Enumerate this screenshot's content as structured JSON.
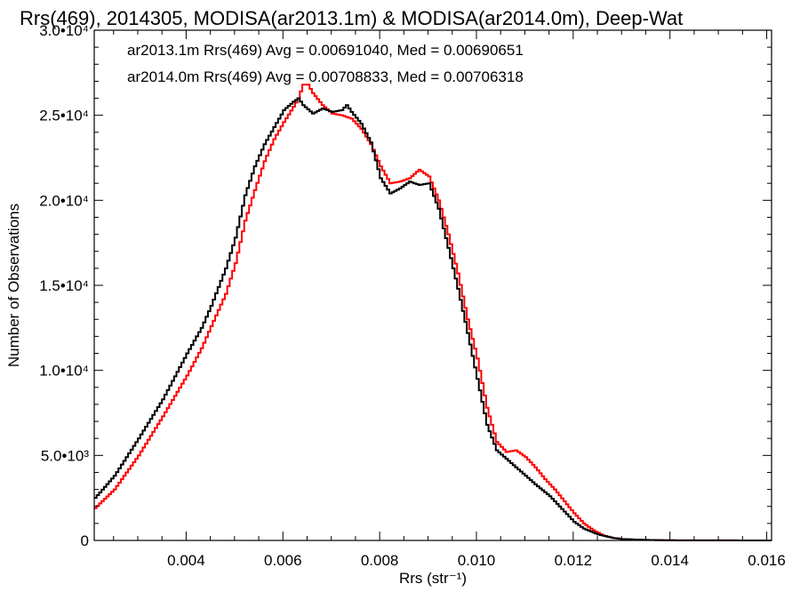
{
  "chart_data": {
    "type": "line",
    "title": "Rrs(469), 2014305, MODISA(ar2013.1m) & MODISA(ar2014.0m), Deep-Wat",
    "xlabel": "Rrs (str⁻¹)",
    "ylabel": "Number of Observations",
    "xlim": [
      0.0021,
      0.0161
    ],
    "ylim": [
      0,
      30000
    ],
    "grid": false,
    "legend_position": "top-left",
    "x_ticks": [
      0.004,
      0.006,
      0.008,
      0.01,
      0.012,
      0.014,
      0.016
    ],
    "x_tick_labels": [
      "0.004",
      "0.006",
      "0.008",
      "0.010",
      "0.012",
      "0.014",
      "0.016"
    ],
    "y_ticks": [
      0,
      5000,
      10000,
      15000,
      20000,
      25000,
      30000
    ],
    "y_tick_labels": [
      "0",
      "5.0•10³",
      "1.0•10⁴",
      "1.5•10⁴",
      "2.0•10⁴",
      "2.5•10⁴",
      "3.0•10⁴"
    ],
    "series": [
      {
        "name": "ar2013.1m",
        "legend_text": "ar2013.1m Rrs(469) Avg = 0.00691040, Med = 0.00690651",
        "color": "#000000",
        "x": [
          0.0021,
          0.0025,
          0.003,
          0.0035,
          0.004,
          0.0043,
          0.0045,
          0.0048,
          0.005,
          0.0052,
          0.0054,
          0.0056,
          0.0058,
          0.006,
          0.0062,
          0.0063,
          0.0064,
          0.0066,
          0.0068,
          0.007,
          0.0072,
          0.0073,
          0.0074,
          0.0076,
          0.0078,
          0.008,
          0.0082,
          0.0084,
          0.0086,
          0.0088,
          0.009,
          0.0092,
          0.0094,
          0.0096,
          0.0098,
          0.01,
          0.0102,
          0.0104,
          0.0106,
          0.0108,
          0.011,
          0.0112,
          0.0115,
          0.0118,
          0.012,
          0.0122,
          0.0125,
          0.0128,
          0.013,
          0.0135,
          0.014,
          0.015,
          0.0161
        ],
        "y": [
          2500,
          3800,
          6000,
          8300,
          11000,
          12500,
          13800,
          16000,
          17800,
          20300,
          22000,
          23300,
          24300,
          25300,
          25800,
          26000,
          25600,
          25100,
          25400,
          25200,
          25300,
          25600,
          25200,
          24500,
          23400,
          21300,
          20400,
          20700,
          21100,
          20900,
          21000,
          19500,
          17200,
          14800,
          12200,
          9500,
          6800,
          5300,
          4800,
          4300,
          3800,
          3300,
          2600,
          1700,
          1100,
          700,
          350,
          150,
          80,
          30,
          10,
          5,
          0
        ]
      },
      {
        "name": "ar2014.0m",
        "legend_text": "ar2014.0m Rrs(469) Avg = 0.00708833, Med = 0.00706318",
        "color": "#ff0000",
        "x": [
          0.0021,
          0.0025,
          0.003,
          0.0035,
          0.004,
          0.0043,
          0.0045,
          0.0048,
          0.005,
          0.0052,
          0.0054,
          0.0056,
          0.0058,
          0.006,
          0.0062,
          0.0063,
          0.0064,
          0.0065,
          0.0066,
          0.0068,
          0.007,
          0.0072,
          0.0074,
          0.0076,
          0.0078,
          0.008,
          0.0082,
          0.0084,
          0.0086,
          0.0088,
          0.009,
          0.0092,
          0.0094,
          0.0096,
          0.0098,
          0.01,
          0.0102,
          0.0104,
          0.0106,
          0.0108,
          0.011,
          0.0112,
          0.0114,
          0.0116,
          0.0118,
          0.012,
          0.0122,
          0.0124,
          0.0126,
          0.0128,
          0.013,
          0.0135,
          0.014,
          0.015,
          0.0161
        ],
        "y": [
          1900,
          3000,
          5000,
          7300,
          9700,
          11300,
          12600,
          14500,
          16300,
          18800,
          20600,
          22300,
          23600,
          24600,
          25500,
          26000,
          26800,
          26800,
          26300,
          25600,
          25100,
          25000,
          24800,
          24200,
          23300,
          22000,
          21000,
          21100,
          21300,
          21800,
          21400,
          20000,
          18000,
          15700,
          13000,
          10700,
          7800,
          5800,
          5200,
          5300,
          4900,
          4300,
          3600,
          3000,
          2300,
          1600,
          1000,
          600,
          300,
          150,
          80,
          30,
          10,
          5,
          0
        ]
      }
    ]
  }
}
